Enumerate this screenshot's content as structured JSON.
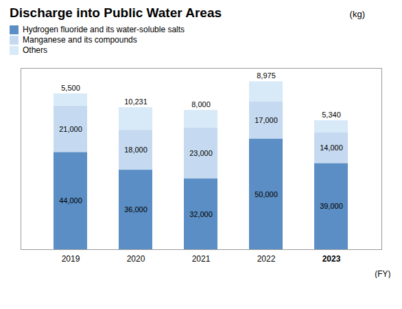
{
  "chart_data": {
    "type": "bar",
    "title": "Discharge into Public Water Areas",
    "ylabel": "(kg)",
    "xlabel": "(FY)",
    "categories": [
      "2019",
      "2020",
      "2021",
      "2022",
      "2023"
    ],
    "series": [
      {
        "name": "Hydrogen fluoride and its water-soluble salts",
        "color": "#5b8ec4",
        "values": [
          44000,
          36000,
          32000,
          50000,
          39000
        ],
        "value_labels": [
          "44,000",
          "36,000",
          "32,000",
          "50,000",
          "39,000"
        ]
      },
      {
        "name": "Manganese and its compounds",
        "color": "#c5daf0",
        "values": [
          21000,
          18000,
          23000,
          17000,
          14000
        ],
        "value_labels": [
          "21,000",
          "18,000",
          "23,000",
          "17,000",
          "14,000"
        ]
      },
      {
        "name": "Others",
        "color": "#d8e9f8",
        "values": [
          5500,
          10231,
          8000,
          8975,
          5340
        ],
        "value_labels": [
          "5,500",
          "10,231",
          "8,000",
          "8,975",
          "5,340"
        ]
      }
    ],
    "stacked": true,
    "ylim": [
      0,
      82000
    ],
    "grid": false,
    "legend": "top-left",
    "data_labels": true,
    "tick_labels": "x"
  }
}
